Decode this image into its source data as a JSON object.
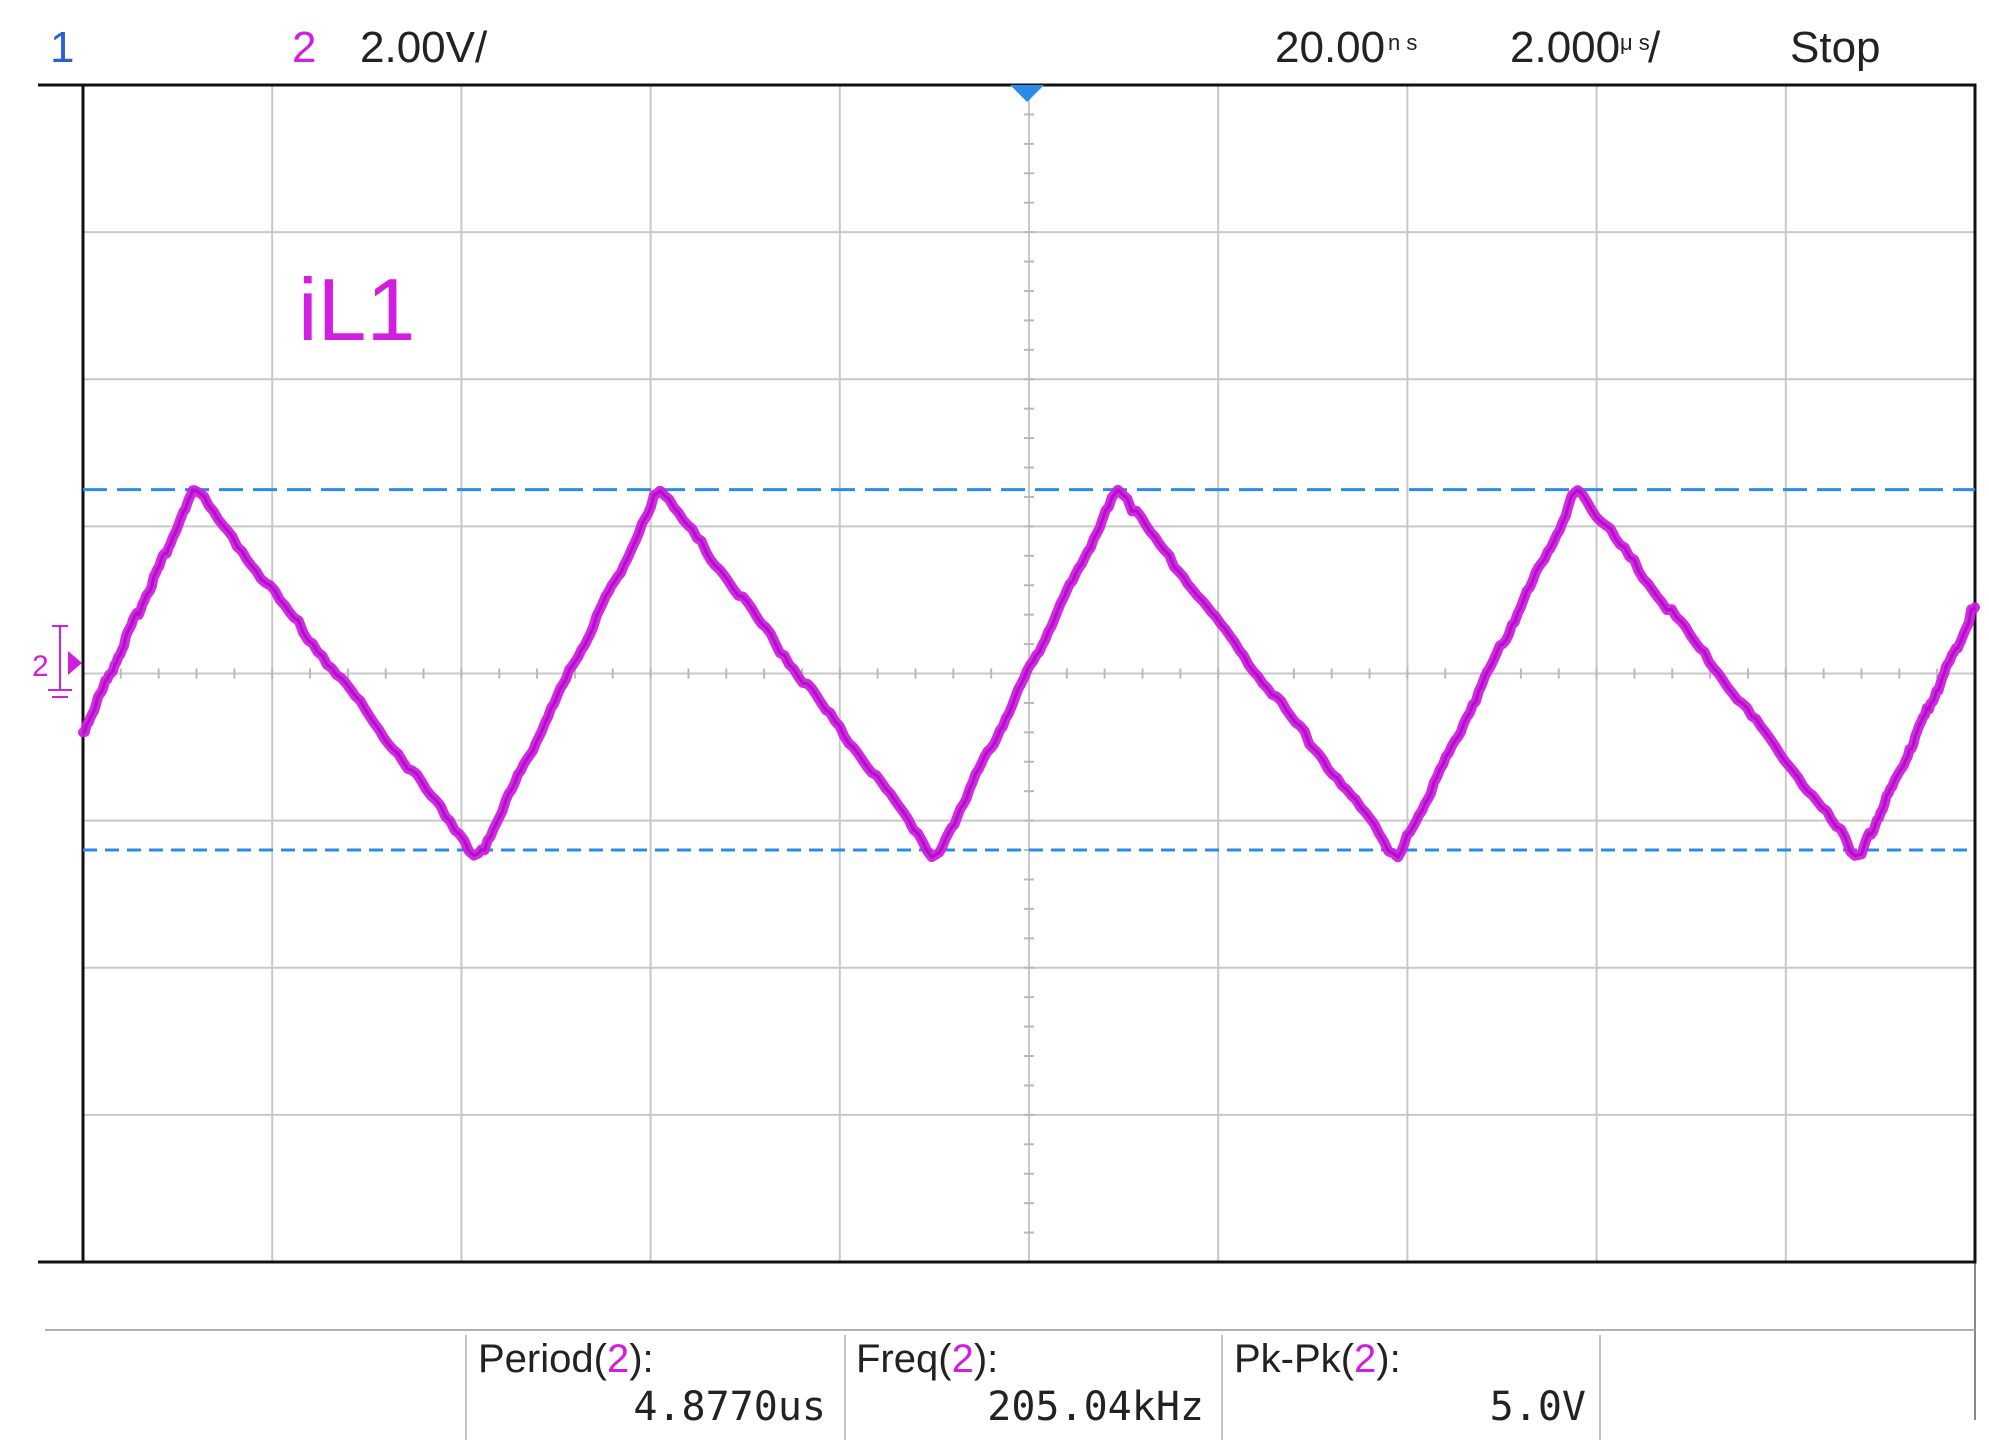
{
  "status_bar": {
    "ch1_label": "1",
    "ch2_label": "2",
    "ch2_scale": "2.00V/",
    "time_offset": "20.00",
    "time_offset_unit": "n s",
    "time_scale": "2.000",
    "time_scale_unit": "μ s",
    "time_scale_suffix": "/",
    "run_state": "Stop"
  },
  "trace_label": "iL1",
  "ground_marker": "2",
  "measurements": [
    {
      "name": "Period",
      "source": "2",
      "value": "4.8770us"
    },
    {
      "name": "Freq",
      "source": "2",
      "value": "205.04kHz"
    },
    {
      "name": "Pk-Pk",
      "source": "2",
      "value": "5.0V"
    }
  ],
  "colors": {
    "ch1": "#2a5fd6",
    "ch2": "#d21ee0",
    "cursor": "#2a8ce6",
    "grid": "#c8c8c8",
    "frame": "#111111"
  },
  "chart_data": {
    "type": "line",
    "title": "",
    "xlabel": "",
    "ylabel": "",
    "x_unit": "us",
    "y_unit": "V",
    "xlim": [
      -9.98,
      10.02
    ],
    "ylim": [
      -8,
      8
    ],
    "grid": true,
    "x_divisions": 10,
    "y_divisions": 8,
    "series": [
      {
        "waveform": "triangle",
        "period_us": 4.877,
        "high_V": 2.5,
        "low_V": -2.5,
        "x": [
          -9.98,
          -8.8,
          -5.8,
          -3.88,
          -0.96,
          0.96,
          3.92,
          5.82,
          8.8,
          10.02
        ],
        "y": [
          -0.8,
          2.5,
          -2.5,
          2.5,
          -2.5,
          2.5,
          -2.5,
          2.5,
          -2.5,
          0.9
        ]
      }
    ],
    "cursors": [
      {
        "axis": "y",
        "value": 2.5
      },
      {
        "axis": "y",
        "value": -2.4
      }
    ],
    "trigger_x": 0
  }
}
